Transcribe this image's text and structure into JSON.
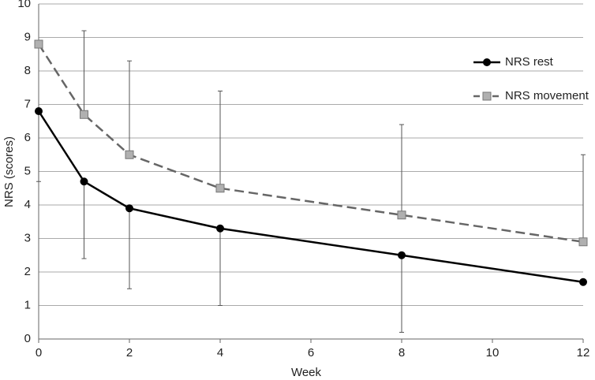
{
  "chart_data": {
    "type": "line",
    "x_label": "Week",
    "y_label": "NRS (scores)",
    "x": [
      0,
      1,
      2,
      4,
      8,
      12
    ],
    "series": [
      {
        "name": "NRS rest",
        "color": "#000000",
        "marker": "circle",
        "dashed": false,
        "error_direction": "down",
        "values": [
          6.8,
          4.7,
          3.9,
          3.3,
          2.5,
          1.7
        ],
        "errors": [
          2.1,
          2.3,
          2.4,
          2.3,
          2.3,
          null
        ]
      },
      {
        "name": "NRS movement",
        "color": "#666666",
        "marker": "square",
        "dashed": true,
        "error_direction": "up",
        "values": [
          8.8,
          6.7,
          5.5,
          4.5,
          3.7,
          2.9
        ],
        "errors": [
          null,
          2.5,
          2.8,
          2.9,
          2.7,
          2.6
        ]
      }
    ],
    "xlim": [
      0,
      12
    ],
    "xticks": [
      0,
      2,
      4,
      6,
      8,
      10,
      12
    ],
    "ylim": [
      0,
      10
    ],
    "yticks": [
      0,
      1,
      2,
      3,
      4,
      5,
      6,
      7,
      8,
      9,
      10
    ],
    "grid": true,
    "legend_position": "right"
  }
}
